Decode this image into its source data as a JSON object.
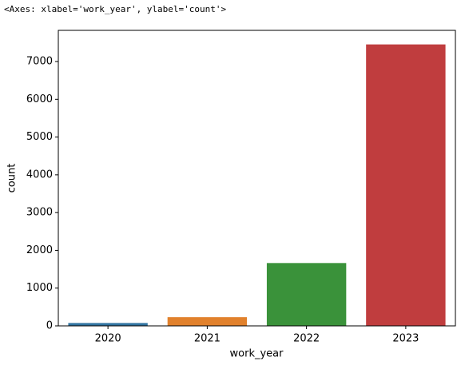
{
  "output_text": "<Axes: xlabel='work_year', ylabel='count'>",
  "chart_data": {
    "type": "bar",
    "x_label": "work_year",
    "y_label": "count",
    "categories": [
      "2020",
      "2021",
      "2022",
      "2023"
    ],
    "values": [
      76,
      230,
      1664,
      7453
    ],
    "colors": [
      "#3274a1",
      "#e1812c",
      "#3a923a",
      "#c03d3e"
    ],
    "ylim": [
      0,
      7825.65
    ],
    "yticks": [
      0,
      1000,
      2000,
      3000,
      4000,
      5000,
      6000,
      7000
    ],
    "grid": false
  }
}
